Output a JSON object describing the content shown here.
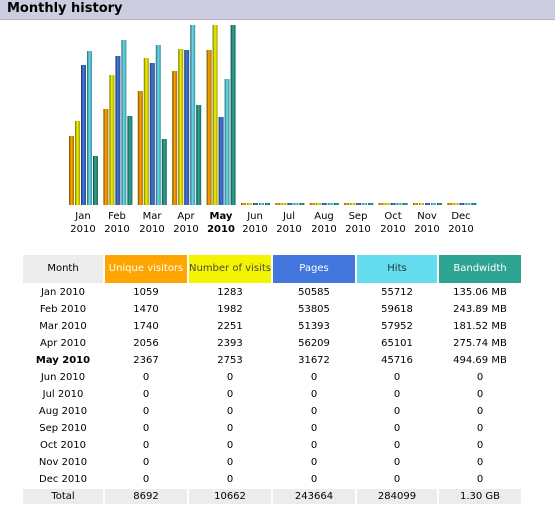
{
  "title": "Monthly history",
  "colors": {
    "unique": "#ffa500",
    "visits": "#f4f400",
    "pages": "#4477dd",
    "hits": "#66ddee",
    "bandwidth": "#2ea495"
  },
  "headers": {
    "month": "Month",
    "unique": "Unique visitors",
    "visits": "Number of visits",
    "pages": "Pages",
    "hits": "Hits",
    "bandwidth": "Bandwidth"
  },
  "rows": [
    {
      "month": "Jan 2010",
      "unique": "1059",
      "visits": "1283",
      "pages": "50585",
      "hits": "55712",
      "bandwidth": "135.06 MB"
    },
    {
      "month": "Feb 2010",
      "unique": "1470",
      "visits": "1982",
      "pages": "53805",
      "hits": "59618",
      "bandwidth": "243.89 MB"
    },
    {
      "month": "Mar 2010",
      "unique": "1740",
      "visits": "2251",
      "pages": "51393",
      "hits": "57952",
      "bandwidth": "181.52 MB"
    },
    {
      "month": "Apr 2010",
      "unique": "2056",
      "visits": "2393",
      "pages": "56209",
      "hits": "65101",
      "bandwidth": "275.74 MB"
    },
    {
      "month": "May 2010",
      "unique": "2367",
      "visits": "2753",
      "pages": "31672",
      "hits": "45716",
      "bandwidth": "494.69 MB"
    },
    {
      "month": "Jun 2010",
      "unique": "0",
      "visits": "0",
      "pages": "0",
      "hits": "0",
      "bandwidth": "0"
    },
    {
      "month": "Jul 2010",
      "unique": "0",
      "visits": "0",
      "pages": "0",
      "hits": "0",
      "bandwidth": "0"
    },
    {
      "month": "Aug 2010",
      "unique": "0",
      "visits": "0",
      "pages": "0",
      "hits": "0",
      "bandwidth": "0"
    },
    {
      "month": "Sep 2010",
      "unique": "0",
      "visits": "0",
      "pages": "0",
      "hits": "0",
      "bandwidth": "0"
    },
    {
      "month": "Oct 2010",
      "unique": "0",
      "visits": "0",
      "pages": "0",
      "hits": "0",
      "bandwidth": "0"
    },
    {
      "month": "Nov 2010",
      "unique": "0",
      "visits": "0",
      "pages": "0",
      "hits": "0",
      "bandwidth": "0"
    },
    {
      "month": "Dec 2010",
      "unique": "0",
      "visits": "0",
      "pages": "0",
      "hits": "0",
      "bandwidth": "0"
    }
  ],
  "total": {
    "month": "Total",
    "unique": "8692",
    "visits": "10662",
    "pages": "243664",
    "hits": "284099",
    "bandwidth": "1.30 GB"
  },
  "chart_data": {
    "type": "bar",
    "categories": [
      "Jan 2010",
      "Feb 2010",
      "Mar 2010",
      "Apr 2010",
      "May 2010",
      "Jun 2010",
      "Jul 2010",
      "Aug 2010",
      "Sep 2010",
      "Oct 2010",
      "Nov 2010",
      "Dec 2010"
    ],
    "category_lines": [
      [
        "Jan",
        "2010"
      ],
      [
        "Feb",
        "2010"
      ],
      [
        "Mar",
        "2010"
      ],
      [
        "Apr",
        "2010"
      ],
      [
        "May",
        "2010"
      ],
      [
        "Jun",
        "2010"
      ],
      [
        "Jul",
        "2010"
      ],
      [
        "Aug",
        "2010"
      ],
      [
        "Sep",
        "2010"
      ],
      [
        "Oct",
        "2010"
      ],
      [
        "Nov",
        "2010"
      ],
      [
        "Dec",
        "2010"
      ]
    ],
    "highlight_category": "May 2010",
    "grid": false,
    "series": [
      {
        "key": "unique",
        "values": [
          1059,
          1470,
          1740,
          2056,
          2367,
          0,
          0,
          0,
          0,
          0,
          0,
          0
        ],
        "color": "#ffa500"
      },
      {
        "key": "visits",
        "values": [
          1283,
          1982,
          2251,
          2393,
          2753,
          0,
          0,
          0,
          0,
          0,
          0,
          0
        ],
        "color": "#f4f400"
      },
      {
        "key": "pages",
        "values": [
          50585,
          53805,
          51393,
          56209,
          31672,
          0,
          0,
          0,
          0,
          0,
          0,
          0
        ],
        "color": "#4477dd"
      },
      {
        "key": "hits",
        "values": [
          55712,
          59618,
          57952,
          65101,
          45716,
          0,
          0,
          0,
          0,
          0,
          0,
          0
        ],
        "color": "#66ddee"
      },
      {
        "key": "bandwidth",
        "values": [
          135.06,
          243.89,
          181.52,
          275.74,
          494.69,
          0,
          0,
          0,
          0,
          0,
          0,
          0
        ],
        "unit": "MB",
        "color": "#2ea495"
      }
    ],
    "scale_groups": [
      [
        "unique",
        "visits"
      ],
      [
        "pages",
        "hits"
      ],
      [
        "bandwidth"
      ]
    ]
  }
}
